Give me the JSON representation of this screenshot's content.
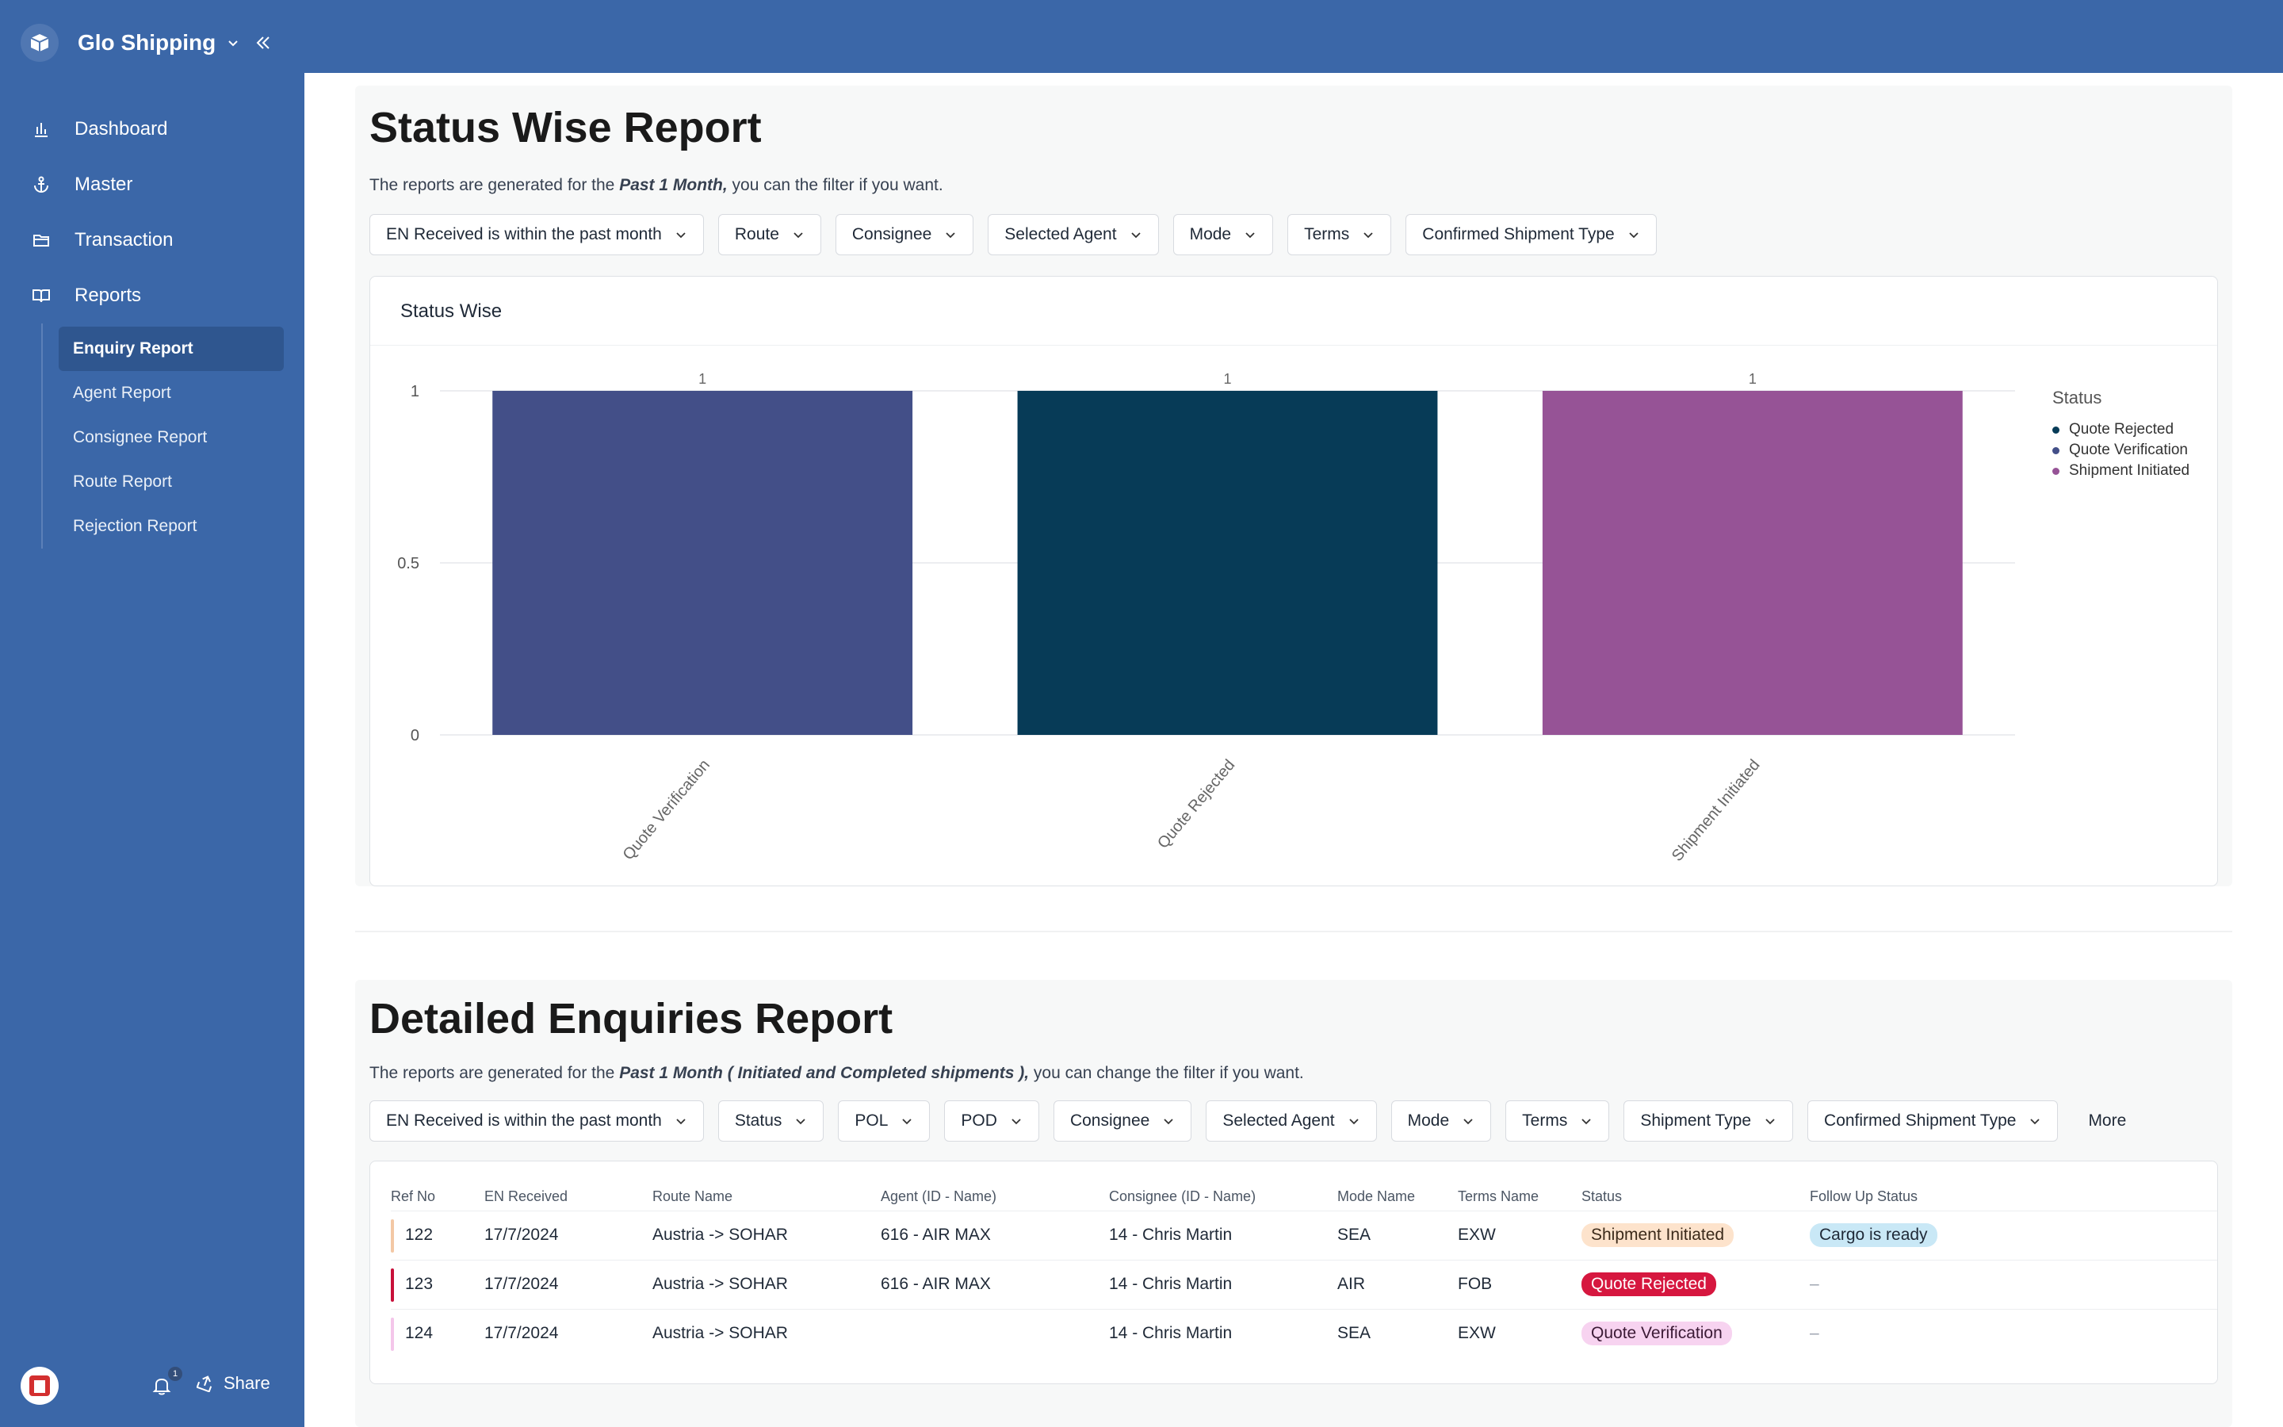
{
  "app": {
    "name": "Glo Shipping"
  },
  "sidebar": {
    "nav": [
      {
        "label": "Dashboard",
        "icon": "bar-chart-icon"
      },
      {
        "label": "Master",
        "icon": "anchor-icon"
      },
      {
        "label": "Transaction",
        "icon": "folder-icon"
      },
      {
        "label": "Reports",
        "icon": "book-icon"
      }
    ],
    "reports_sub": [
      {
        "label": "Enquiry Report",
        "active": true
      },
      {
        "label": "Agent Report"
      },
      {
        "label": "Consignee Report"
      },
      {
        "label": "Route Report"
      },
      {
        "label": "Rejection Report"
      }
    ],
    "footer": {
      "notification_count": "1",
      "share_label": "Share"
    }
  },
  "status_report": {
    "title": "Status Wise Report",
    "desc_prefix": "The reports are generated for the ",
    "desc_period": "Past 1 Month,",
    "desc_suffix": " you can the filter if you want.",
    "filters": [
      "EN Received is within the past month",
      "Route",
      "Consignee",
      "Selected Agent",
      "Mode",
      "Terms",
      "Confirmed Shipment Type"
    ],
    "chart_title": "Status Wise",
    "legend_title": "Status",
    "legend": [
      {
        "label": "Quote Rejected",
        "color": "#073b57"
      },
      {
        "label": "Quote Verification",
        "color": "#434f88"
      },
      {
        "label": "Shipment Initiated",
        "color": "#965396"
      }
    ]
  },
  "chart_data": {
    "type": "bar",
    "title": "Status Wise",
    "categories": [
      "Quote Verification",
      "Quote Rejected",
      "Shipment Initiated"
    ],
    "values": [
      1,
      1,
      1
    ],
    "colors": [
      "#434f88",
      "#073b57",
      "#965396"
    ],
    "y_ticks": [
      "0",
      "0.5",
      "1"
    ],
    "ylim": [
      0,
      1
    ],
    "legend_title": "Status",
    "legend_position": "right",
    "grid": true
  },
  "detailed_report": {
    "title": "Detailed Enquiries Report",
    "desc_prefix": "The reports are generated for the ",
    "desc_period": "Past 1 Month ( Initiated and Completed shipments ),",
    "desc_suffix": " you can change the filter if you want.",
    "filters": [
      "EN Received is within the past month",
      "Status",
      "POL",
      "POD",
      "Consignee",
      "Selected Agent",
      "Mode",
      "Terms",
      "Shipment Type",
      "Confirmed Shipment Type"
    ],
    "more_label": "More",
    "columns": [
      "Ref No",
      "EN Received",
      "Route Name",
      "Agent (ID - Name)",
      "Consignee (ID - Name)",
      "Mode Name",
      "Terms Name",
      "Status",
      "Follow Up Status"
    ],
    "rows": [
      {
        "ref": "122",
        "received": "17/7/2024",
        "route": "Austria -> SOHAR",
        "agent": "616 - AIR MAX",
        "consignee": "14 - Chris Martin",
        "mode": "SEA",
        "terms": "EXW",
        "status": "Shipment Initiated",
        "status_bg": "#fde3cc",
        "status_fg": "#3b2a1a",
        "bar_color": "#f3c8a5",
        "followup": "Cargo is ready"
      },
      {
        "ref": "123",
        "received": "17/7/2024",
        "route": "Austria -> SOHAR",
        "agent": "616 - AIR MAX",
        "consignee": "14 - Chris Martin",
        "mode": "AIR",
        "terms": "FOB",
        "status": "Quote Rejected",
        "status_bg": "#d6173f",
        "status_fg": "#ffffff",
        "bar_color": "#c8103a",
        "followup": "–"
      },
      {
        "ref": "124",
        "received": "17/7/2024",
        "route": "Austria -> SOHAR",
        "agent": "",
        "consignee": "14 - Chris Martin",
        "mode": "SEA",
        "terms": "EXW",
        "status": "Quote Verification",
        "status_bg": "#f7d3f0",
        "status_fg": "#3b1a35",
        "bar_color": "#f4c6ea",
        "followup": "–"
      }
    ],
    "followup_badge_bg": "#c9e8f6"
  }
}
